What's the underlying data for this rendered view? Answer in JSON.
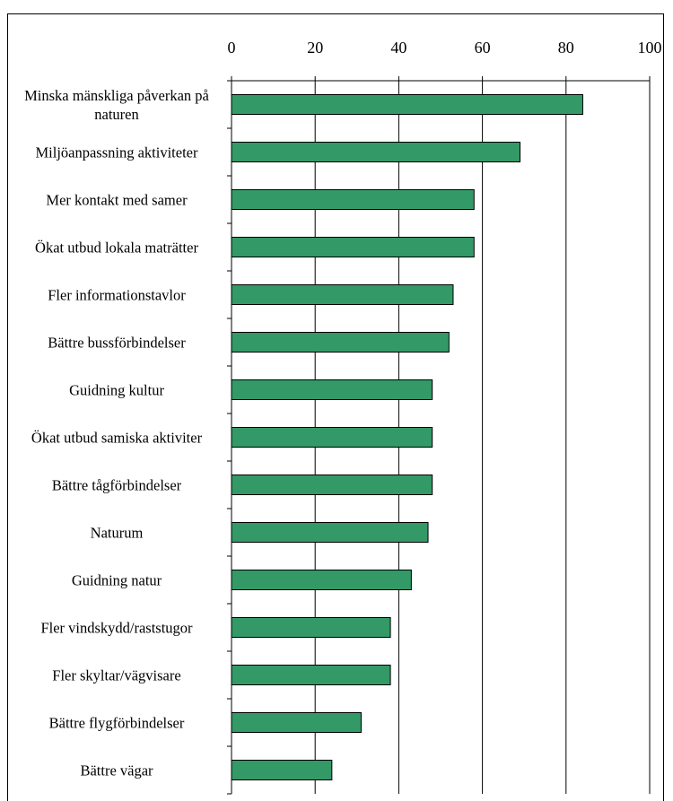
{
  "chart_data": {
    "type": "barh",
    "categories": [
      "Minska mänskliga påverkan på naturen",
      "Miljöanpassning aktiviteter",
      "Mer kontakt med samer",
      "Ökat utbud lokala maträtter",
      "Fler informationstavlor",
      "Bättre bussförbindelser",
      "Guidning kultur",
      "Ökat utbud samiska aktiviter",
      "Bättre tågförbindelser",
      "Naturum",
      "Guidning natur",
      "Fler vindskydd/raststugor",
      "Fler skyltar/vägvisare",
      "Bättre flygförbindelser",
      "Bättre vägar"
    ],
    "values": [
      84,
      69,
      58,
      58,
      53,
      52,
      48,
      48,
      48,
      47,
      43,
      38,
      38,
      31,
      24
    ],
    "color": "#339966",
    "xlim": [
      0,
      100
    ],
    "xticks": [
      0,
      20,
      40,
      60,
      80,
      100
    ],
    "grid": true
  }
}
